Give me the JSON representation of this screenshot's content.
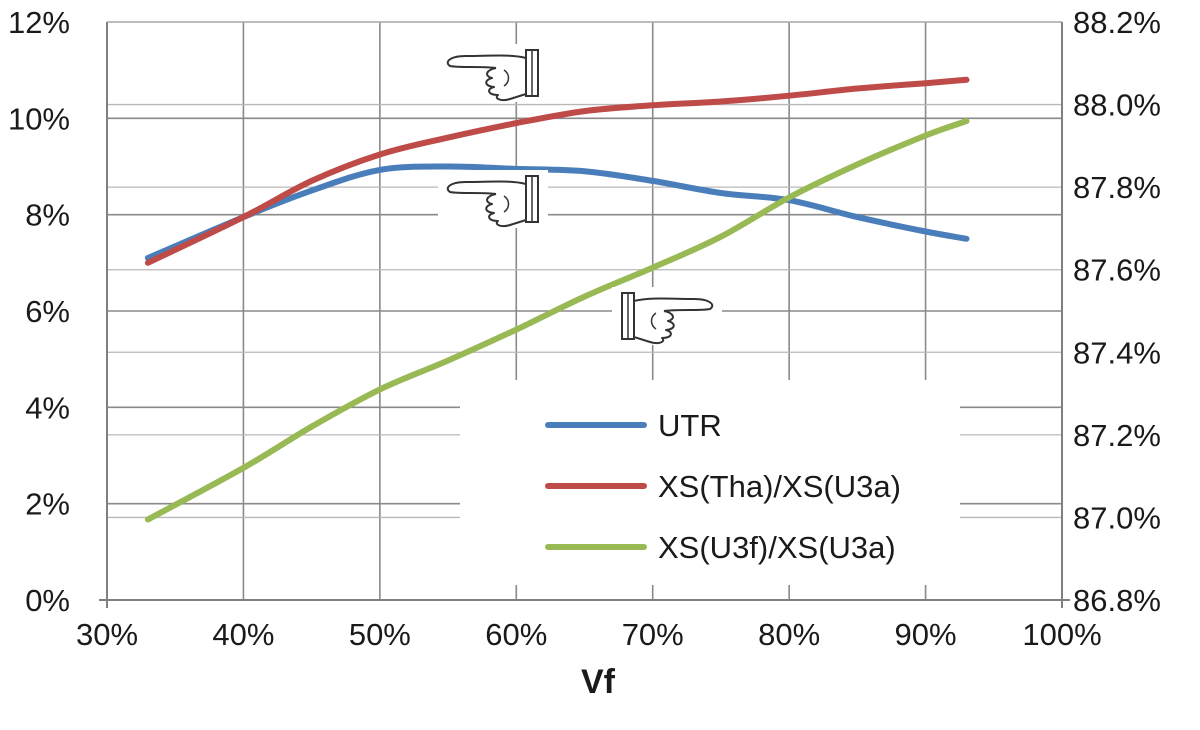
{
  "chart_data": {
    "type": "line",
    "xlabel": "Vf",
    "x_tick_labels": [
      "30%",
      "40%",
      "50%",
      "60%",
      "70%",
      "80%",
      "90%",
      "100%"
    ],
    "xlim": [
      30,
      100
    ],
    "y_tick_labels": [
      "0%",
      "2%",
      "4%",
      "6%",
      "8%",
      "10%",
      "12%"
    ],
    "ylim": [
      0,
      12
    ],
    "y2_tick_labels": [
      "86.8%",
      "87.0%",
      "87.2%",
      "87.4%",
      "87.6%",
      "87.8%",
      "88.0%",
      "88.2%"
    ],
    "y2lim": [
      86.8,
      88.2
    ],
    "grid": true,
    "legend_position": "bottom-right",
    "series": [
      {
        "name": "UTR",
        "axis": "left",
        "color": "#4a7ebb",
        "x": [
          33,
          40,
          45,
          50,
          55,
          60,
          65,
          70,
          75,
          80,
          85,
          90,
          93
        ],
        "y": [
          7.1,
          7.95,
          8.5,
          8.93,
          9.0,
          8.95,
          8.9,
          8.7,
          8.45,
          8.3,
          7.95,
          7.65,
          7.5
        ]
      },
      {
        "name": "XS(Tha)/XS(U3a)",
        "axis": "left",
        "color": "#be4b48",
        "x": [
          33,
          40,
          45,
          50,
          55,
          60,
          65,
          70,
          75,
          80,
          85,
          90,
          93
        ],
        "y": [
          7.0,
          7.95,
          8.7,
          9.25,
          9.6,
          9.9,
          10.15,
          10.27,
          10.35,
          10.47,
          10.62,
          10.73,
          10.8
        ]
      },
      {
        "name": "XS(U3f)/XS(U3a)",
        "axis": "right",
        "color": "#98b954",
        "x": [
          33,
          40,
          45,
          50,
          55,
          60,
          65,
          70,
          75,
          80,
          85,
          90,
          93
        ],
        "y": [
          86.995,
          87.12,
          87.22,
          87.31,
          87.38,
          87.455,
          87.535,
          87.605,
          87.68,
          87.775,
          87.855,
          87.925,
          87.96
        ]
      }
    ]
  }
}
